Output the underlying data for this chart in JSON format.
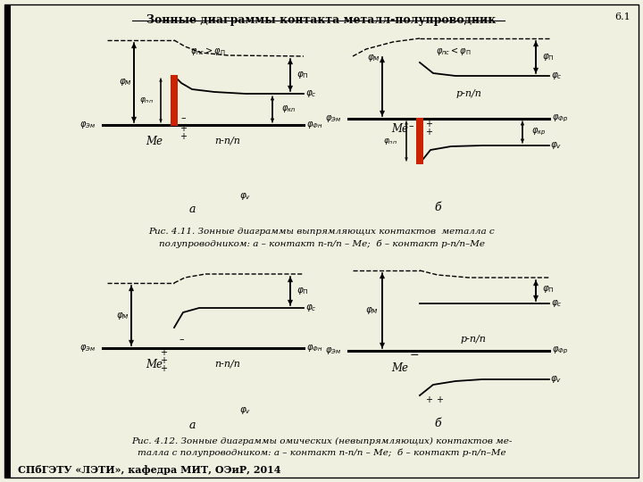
{
  "title": "Зонные диаграммы контакта металл-полупроводник",
  "page_num": "6.1",
  "caption1_line1": "Рис. 4.11. Зонные диаграммы выпрямляющих контактов  металла с",
  "caption1_line2": "полупроводником: а – контакт n-п/п – Me;  б – контакт р-п/п–Me",
  "caption2_line1": "Рис. 4.12. Зонные диаграммы омических (невыпрямляющих) контактов ме-",
  "caption2_line2": "талла с полупроводником: а – контакт n-п/п – Me;  б – контакт р-п/п–Me",
  "footer": "СПбГЭТУ «ЛЭТИ», кафедра МИТ, ОЭиР, 2014",
  "bg_color": "#f0f0e0",
  "line_color": "#000000",
  "red_color": "#cc2200"
}
